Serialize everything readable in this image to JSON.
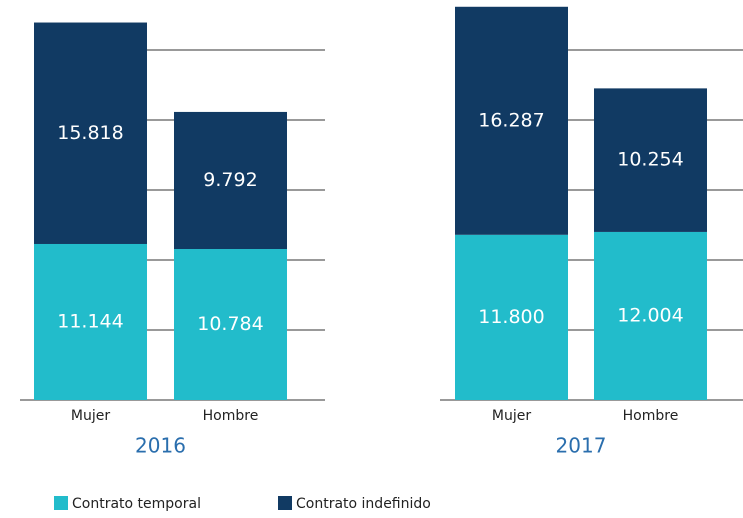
{
  "chart_data": [
    {
      "type": "stacked-bar",
      "title": "2016",
      "categories": [
        "Mujer",
        "Hombre"
      ],
      "series": [
        {
          "name": "Contrato temporal",
          "color": "#22bccb",
          "values": [
            11144,
            10784
          ],
          "value_labels": [
            "11.144",
            "10.784"
          ]
        },
        {
          "name": "Contrato indefinido",
          "color": "#113a63",
          "values": [
            15818,
            9792
          ],
          "value_labels": [
            "15.818",
            "9.792"
          ]
        }
      ],
      "ylim": [
        0,
        28571
      ],
      "yticks": [
        0,
        5000,
        10000,
        15000,
        20000,
        25000
      ],
      "grid": true
    },
    {
      "type": "stacked-bar",
      "title": "2017",
      "categories": [
        "Mujer",
        "Hombre"
      ],
      "series": [
        {
          "name": "Contrato temporal",
          "color": "#22bccb",
          "values": [
            11800,
            12004
          ],
          "value_labels": [
            "11.800",
            "12.004"
          ]
        },
        {
          "name": "Contrato indefinido",
          "color": "#113a63",
          "values": [
            16287,
            10254
          ],
          "value_labels": [
            "16.287",
            "10.254"
          ]
        }
      ],
      "ylim": [
        0,
        28571
      ],
      "yticks": [
        0,
        5000,
        10000,
        15000,
        20000,
        25000
      ],
      "grid": true
    }
  ]
}
